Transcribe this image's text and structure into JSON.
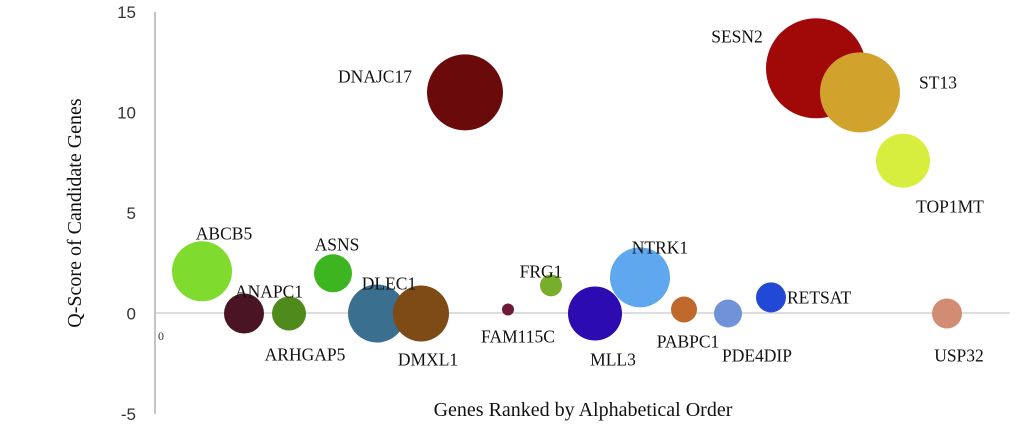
{
  "chart_data": {
    "type": "scatter",
    "xlabel": "Genes Ranked by Alphabetical Order",
    "ylabel": "Q-Score of Candidate Genes",
    "x_origin_label": "0",
    "ylim": [
      -5,
      15
    ],
    "yticks": [
      "-5",
      "0",
      "5",
      "10",
      "15"
    ],
    "grid": false,
    "legend": "none",
    "points": [
      {
        "label": "ABCB5",
        "rank": 1,
        "y": 2.1,
        "size": 30,
        "color": "#7fdb2e"
      },
      {
        "label": "ANAPC1",
        "rank": 2,
        "y": 0.0,
        "size": 20,
        "color": "#4a1424"
      },
      {
        "label": "ARHGAP5",
        "rank": 3,
        "y": 0.0,
        "size": 17,
        "color": "#4f8a1c"
      },
      {
        "label": "ASNS",
        "rank": 4,
        "y": 2.0,
        "size": 19,
        "color": "#3db520"
      },
      {
        "label": "DLEC1",
        "rank": 5,
        "y": 0.0,
        "size": 29,
        "color": "#3b6f8f"
      },
      {
        "label": "DMXL1",
        "rank": 6,
        "y": 0.0,
        "size": 28,
        "color": "#7e4a16"
      },
      {
        "label": "DNAJC17",
        "rank": 7,
        "y": 11.0,
        "size": 38,
        "color": "#6a0a0a"
      },
      {
        "label": "FAM115C",
        "rank": 8,
        "y": 0.2,
        "size": 6,
        "color": "#6e1a36"
      },
      {
        "label": "FRG1",
        "rank": 9,
        "y": 1.4,
        "size": 11,
        "color": "#79ad2c"
      },
      {
        "label": "MLL3",
        "rank": 10,
        "y": 0.0,
        "size": 27,
        "color": "#2c0bb0"
      },
      {
        "label": "NTRK1",
        "rank": 11,
        "y": 1.8,
        "size": 30,
        "color": "#5fa7ee"
      },
      {
        "label": "PABPC1",
        "rank": 12,
        "y": 0.2,
        "size": 13,
        "color": "#c0692c"
      },
      {
        "label": "PDE4DIP",
        "rank": 13,
        "y": 0.0,
        "size": 14,
        "color": "#6f92d8"
      },
      {
        "label": "RETSAT",
        "rank": 14,
        "y": 0.8,
        "size": 15,
        "color": "#2249d6"
      },
      {
        "label": "SESN2",
        "rank": 15,
        "y": 12.2,
        "size": 50,
        "color": "#a10808"
      },
      {
        "label": "ST13",
        "rank": 16,
        "y": 11.0,
        "size": 40,
        "color": "#d2a32c"
      },
      {
        "label": "TOP1MT",
        "rank": 17,
        "y": 7.6,
        "size": 27,
        "color": "#d8ee3e"
      },
      {
        "label": "USP32",
        "rank": 18,
        "y": 0.0,
        "size": 15,
        "color": "#d28c74"
      }
    ]
  }
}
